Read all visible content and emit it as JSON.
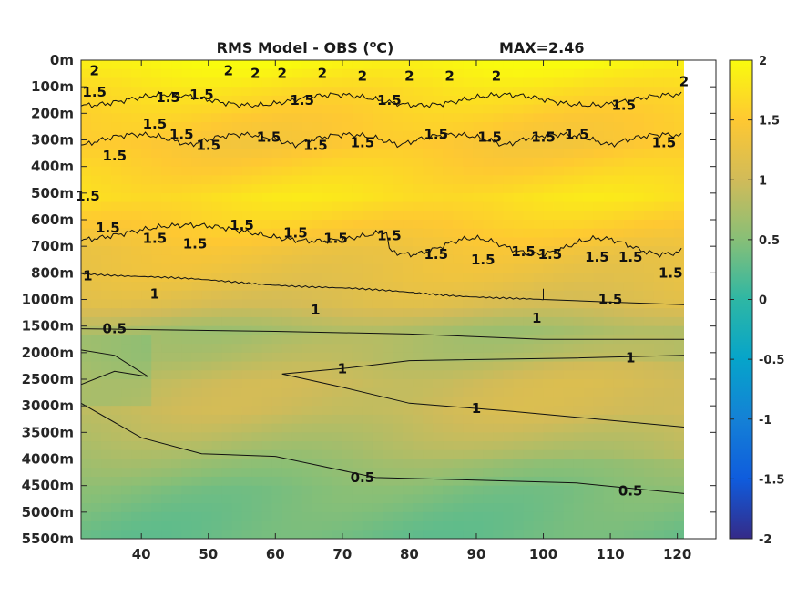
{
  "chart_data": {
    "type": "heatmap",
    "title": "RMS Model - OBS (",
    "title_unit": "o",
    "title_unit_tail": "C)",
    "max_label": "MAX=2.46",
    "xlabel": "",
    "ylabel": "",
    "x_ticks": [
      "40",
      "50",
      "60",
      "70",
      "80",
      "90",
      "100",
      "110",
      "120"
    ],
    "x_tick_values": [
      40,
      50,
      60,
      70,
      80,
      90,
      100,
      110,
      120
    ],
    "xlim": [
      31,
      121
    ],
    "y_tick_labels": [
      "0m",
      "100m",
      "200m",
      "300m",
      "400m",
      "500m",
      "600m",
      "700m",
      "800m",
      "1000m",
      "1500m",
      "2000m",
      "2500m",
      "3000m",
      "3500m",
      "4000m",
      "4500m",
      "5000m",
      "5500m"
    ],
    "colorbar": {
      "ticks": [
        "-2",
        "-1.5",
        "-1",
        "-0.5",
        "0",
        "0.5",
        "1",
        "1.5",
        "2"
      ],
      "tick_values": [
        -2,
        -1.5,
        -1,
        -0.5,
        0,
        0.5,
        1,
        1.5,
        2
      ],
      "range": [
        -2,
        2
      ],
      "colormap": "parula"
    },
    "depth_profile": [
      {
        "depth": "0m",
        "rms": 1.95
      },
      {
        "depth": "100m",
        "rms": 1.7
      },
      {
        "depth": "200m",
        "rms": 1.55
      },
      {
        "depth": "300m",
        "rms": 1.45
      },
      {
        "depth": "400m",
        "rms": 1.6
      },
      {
        "depth": "500m",
        "rms": 1.75
      },
      {
        "depth": "600m",
        "rms": 1.55
      },
      {
        "depth": "700m",
        "rms": 1.35
      },
      {
        "depth": "800m",
        "rms": 1.25
      },
      {
        "depth": "1000m",
        "rms": 1.1
      },
      {
        "depth": "1500m",
        "rms": 0.72
      },
      {
        "depth": "2000m",
        "rms": 0.8
      },
      {
        "depth": "2500m",
        "rms": 0.95
      },
      {
        "depth": "3000m",
        "rms": 0.95
      },
      {
        "depth": "3500m",
        "rms": 0.8
      },
      {
        "depth": "4000m",
        "rms": 0.62
      },
      {
        "depth": "4500m",
        "rms": 0.45
      },
      {
        "depth": "5000m",
        "rms": 0.38
      },
      {
        "depth": "5500m",
        "rms": 0.33
      }
    ],
    "contour_labels": [
      {
        "text": "2",
        "x": 33,
        "depth_index": 0.4
      },
      {
        "text": "2",
        "x": 53,
        "depth_index": 0.4
      },
      {
        "text": "2",
        "x": 57,
        "depth_index": 0.5
      },
      {
        "text": "2",
        "x": 61,
        "depth_index": 0.5
      },
      {
        "text": "2",
        "x": 67,
        "depth_index": 0.5
      },
      {
        "text": "2",
        "x": 73,
        "depth_index": 0.6
      },
      {
        "text": "2",
        "x": 80,
        "depth_index": 0.6
      },
      {
        "text": "2",
        "x": 86,
        "depth_index": 0.6
      },
      {
        "text": "2",
        "x": 93,
        "depth_index": 0.6
      },
      {
        "text": "2",
        "x": 121,
        "depth_index": 0.8
      },
      {
        "text": "1.5",
        "x": 33,
        "depth_index": 1.2
      },
      {
        "text": "1.5",
        "x": 44,
        "depth_index": 1.4
      },
      {
        "text": "1.5",
        "x": 49,
        "depth_index": 1.3
      },
      {
        "text": "1.5",
        "x": 64,
        "depth_index": 1.5
      },
      {
        "text": "1.5",
        "x": 77,
        "depth_index": 1.5
      },
      {
        "text": "1.5",
        "x": 112,
        "depth_index": 1.7
      },
      {
        "text": "1.5",
        "x": 42,
        "depth_index": 2.4
      },
      {
        "text": "1.5",
        "x": 46,
        "depth_index": 2.8
      },
      {
        "text": "1.5",
        "x": 50,
        "depth_index": 3.2
      },
      {
        "text": "1.5",
        "x": 59,
        "depth_index": 2.9
      },
      {
        "text": "1.5",
        "x": 66,
        "depth_index": 3.2
      },
      {
        "text": "1.5",
        "x": 73,
        "depth_index": 3.1
      },
      {
        "text": "1.5",
        "x": 84,
        "depth_index": 2.8
      },
      {
        "text": "1.5",
        "x": 92,
        "depth_index": 2.9
      },
      {
        "text": "1.5",
        "x": 100,
        "depth_index": 2.9
      },
      {
        "text": "1.5",
        "x": 105,
        "depth_index": 2.8
      },
      {
        "text": "1.5",
        "x": 118,
        "depth_index": 3.1
      },
      {
        "text": "1.5",
        "x": 36,
        "depth_index": 3.6
      },
      {
        "text": "1.5",
        "x": 32,
        "depth_index": 5.1
      },
      {
        "text": "1.5",
        "x": 35,
        "depth_index": 6.3
      },
      {
        "text": "1.5",
        "x": 42,
        "depth_index": 6.7
      },
      {
        "text": "1.5",
        "x": 48,
        "depth_index": 6.9
      },
      {
        "text": "1.5",
        "x": 55,
        "depth_index": 6.2
      },
      {
        "text": "1.5",
        "x": 63,
        "depth_index": 6.5
      },
      {
        "text": "1.5",
        "x": 69,
        "depth_index": 6.7
      },
      {
        "text": "1.5",
        "x": 77,
        "depth_index": 6.6
      },
      {
        "text": "1.5",
        "x": 84,
        "depth_index": 7.3
      },
      {
        "text": "1.5",
        "x": 91,
        "depth_index": 7.5
      },
      {
        "text": "1.5",
        "x": 97,
        "depth_index": 7.2
      },
      {
        "text": "1.5",
        "x": 101,
        "depth_index": 7.3
      },
      {
        "text": "1.5",
        "x": 108,
        "depth_index": 7.4
      },
      {
        "text": "1.5",
        "x": 113,
        "depth_index": 7.4
      },
      {
        "text": "1.5",
        "x": 119,
        "depth_index": 8.0
      },
      {
        "text": "1.5",
        "x": 110,
        "depth_index": 9.0
      },
      {
        "text": "1",
        "x": 32,
        "depth_index": 8.1
      },
      {
        "text": "1",
        "x": 42,
        "depth_index": 8.8
      },
      {
        "text": "1",
        "x": 66,
        "depth_index": 9.4
      },
      {
        "text": "1",
        "x": 99,
        "depth_index": 9.7
      },
      {
        "text": "1",
        "x": 70,
        "depth_index": 11.6
      },
      {
        "text": "1",
        "x": 113,
        "depth_index": 11.2
      },
      {
        "text": "1",
        "x": 90,
        "depth_index": 13.1
      },
      {
        "text": "0.5",
        "x": 36,
        "depth_index": 10.1
      },
      {
        "text": "0.5",
        "x": 73,
        "depth_index": 15.7
      },
      {
        "text": "0.5",
        "x": 113,
        "depth_index": 16.2
      }
    ]
  }
}
